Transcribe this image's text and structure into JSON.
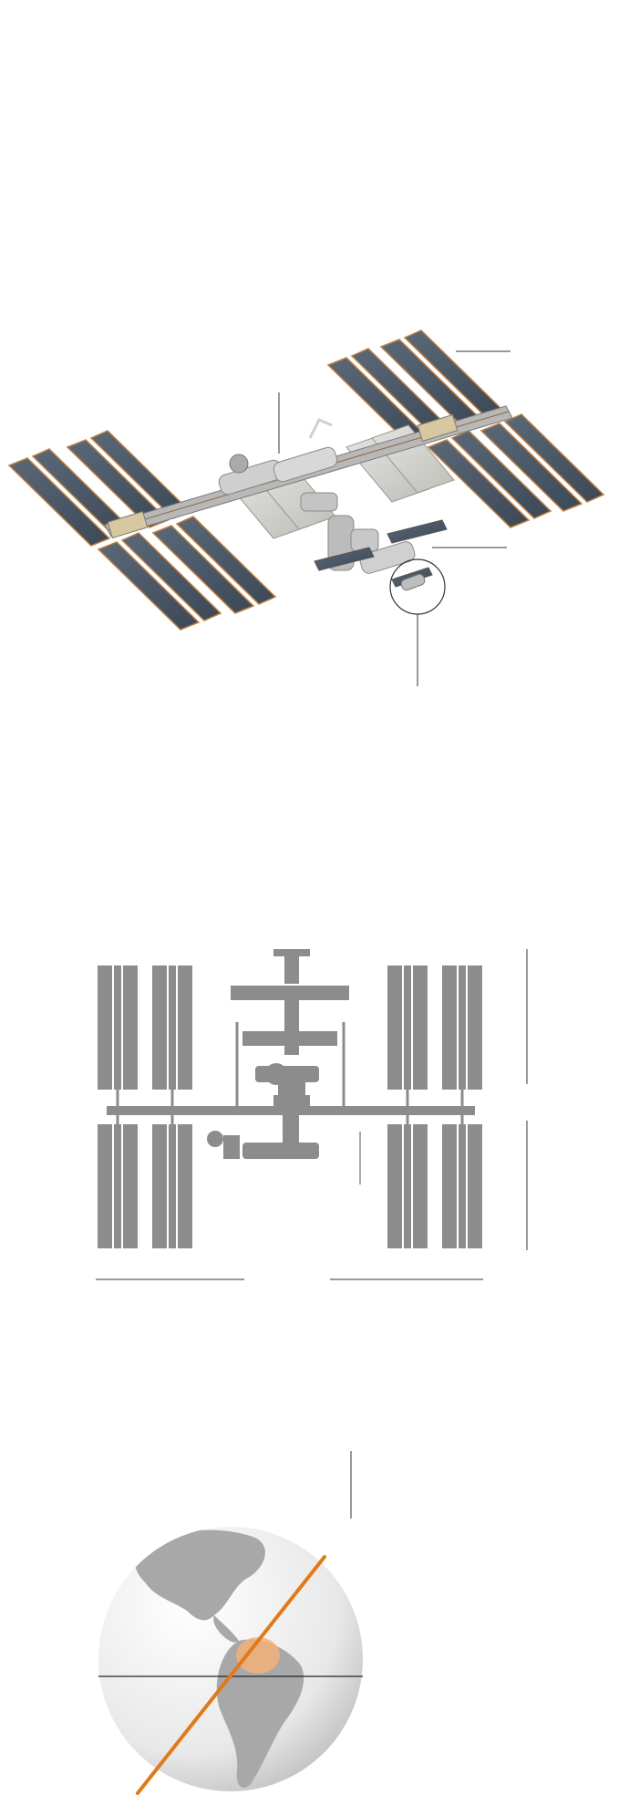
{
  "colors": {
    "panel": "#4a5868",
    "panel_strip": "#d9d9d9",
    "panel_edge": "#c08040",
    "truss": "#b8b8b8",
    "module": "#c8c8c8",
    "schematic": "#8c8c8c",
    "land": "#a8a8a8",
    "orbit": "#e07a1a",
    "highlight": "#f2b27a",
    "leader": "#333333"
  },
  "icons": {
    "render": "iss-3d-render-icon",
    "schematic": "iss-schematic-icon",
    "globe": "earth-globe-icon"
  }
}
